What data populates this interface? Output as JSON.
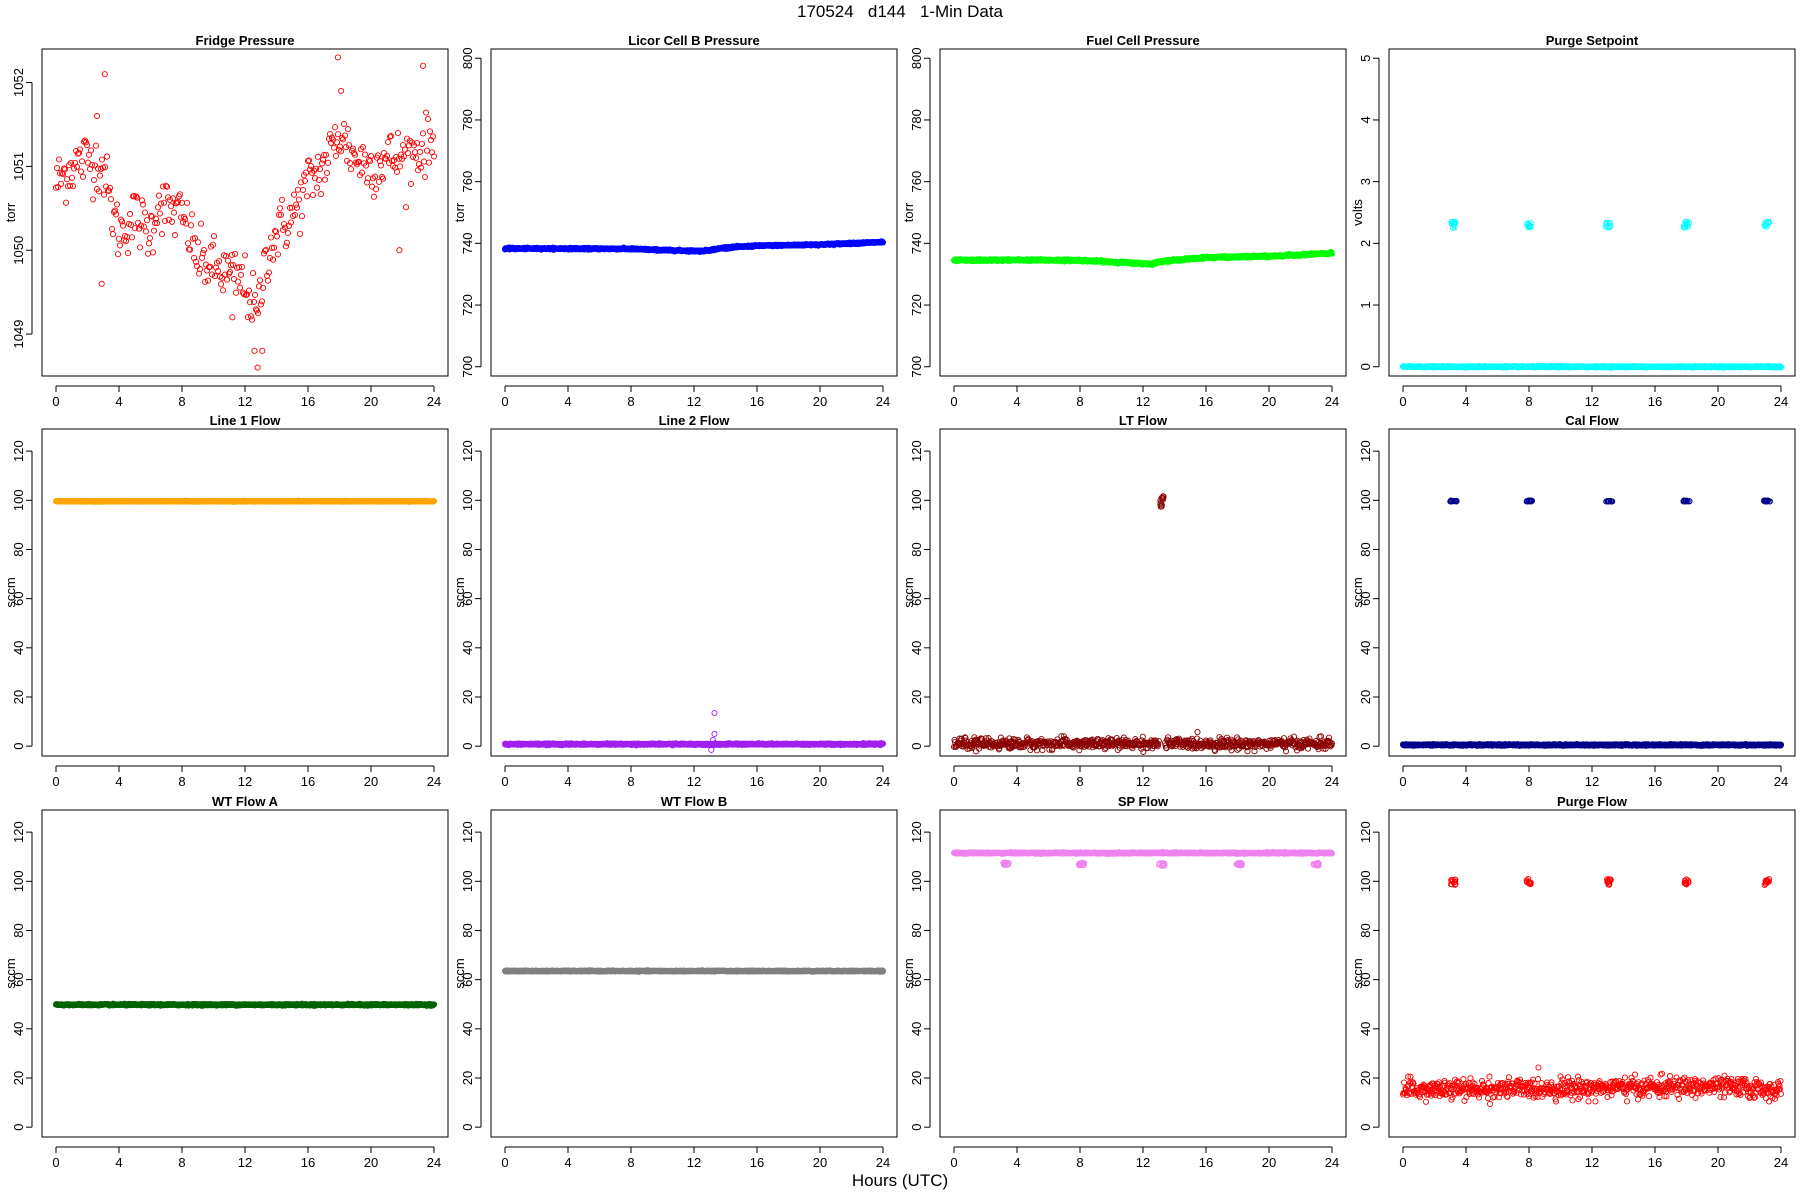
{
  "figure": {
    "title": "170524   d144   1-Min Data",
    "xlabel": "Hours (UTC)"
  },
  "chart_data": [
    {
      "type": "scatter",
      "title": "Fridge Pressure",
      "ylabel": "torr",
      "color": "#ff0000",
      "xlim": [
        0,
        24
      ],
      "ylim": [
        1048.5,
        1052.4
      ],
      "xticks": [
        0,
        4,
        8,
        12,
        16,
        20,
        24
      ],
      "yticks": [
        1049,
        1050,
        1051,
        1052
      ],
      "series": [
        {
          "kind": "curve",
          "points": [
            [
              0,
              1050.8
            ],
            [
              1,
              1051.0
            ],
            [
              2,
              1051.1
            ],
            [
              3,
              1051.0
            ],
            [
              3.5,
              1050.5
            ],
            [
              4,
              1050.2
            ],
            [
              5,
              1050.4
            ],
            [
              6,
              1050.2
            ],
            [
              6.5,
              1050.6
            ],
            [
              7,
              1050.5
            ],
            [
              8,
              1050.4
            ],
            [
              8.5,
              1050.2
            ],
            [
              9,
              1049.9
            ],
            [
              10,
              1049.8
            ],
            [
              11,
              1049.7
            ],
            [
              12,
              1049.6
            ],
            [
              12.8,
              1049.2
            ],
            [
              13.3,
              1049.9
            ],
            [
              14,
              1050.2
            ],
            [
              15,
              1050.4
            ],
            [
              16,
              1050.8
            ],
            [
              17,
              1051.0
            ],
            [
              18,
              1051.4
            ],
            [
              19,
              1051.1
            ],
            [
              20,
              1051.0
            ],
            [
              21,
              1051.1
            ],
            [
              22,
              1051.1
            ],
            [
              23,
              1051.2
            ],
            [
              24,
              1051.3
            ]
          ],
          "noise": 0.35,
          "spikes_up": [
            [
              3.1,
              1052.1
            ],
            [
              17.9,
              1052.3
            ],
            [
              18.1,
              1051.9
            ],
            [
              23.3,
              1052.2
            ],
            [
              2.6,
              1051.6
            ]
          ],
          "spikes_down": [
            [
              12.8,
              1048.6
            ],
            [
              12.6,
              1048.8
            ],
            [
              13.1,
              1048.8
            ],
            [
              2.9,
              1049.6
            ],
            [
              11.2,
              1049.2
            ],
            [
              21.8,
              1050.0
            ]
          ],
          "density": 1
        }
      ]
    },
    {
      "type": "scatter",
      "title": "Licor Cell B Pressure",
      "ylabel": "torr",
      "color": "#0000ff",
      "xlim": [
        0,
        24
      ],
      "ylim": [
        697,
        803
      ],
      "xticks": [
        0,
        4,
        8,
        12,
        16,
        20,
        24
      ],
      "yticks": [
        700,
        720,
        740,
        760,
        780,
        800
      ],
      "series": [
        {
          "kind": "curve",
          "points": [
            [
              0,
              738.3
            ],
            [
              4,
              738.3
            ],
            [
              8,
              738.2
            ],
            [
              10,
              737.8
            ],
            [
              12.5,
              737.5
            ],
            [
              13,
              737.8
            ],
            [
              14,
              738.6
            ],
            [
              16,
              739.2
            ],
            [
              20,
              739.6
            ],
            [
              24,
              740.4
            ]
          ],
          "noise": 0.25,
          "density": 3
        }
      ]
    },
    {
      "type": "scatter",
      "title": "Fuel Cell Pressure",
      "ylabel": "torr",
      "color": "#00ff00",
      "xlim": [
        0,
        24
      ],
      "ylim": [
        697,
        803
      ],
      "xticks": [
        0,
        4,
        8,
        12,
        16,
        20,
        24
      ],
      "yticks": [
        700,
        720,
        740,
        760,
        780,
        800
      ],
      "series": [
        {
          "kind": "curve",
          "points": [
            [
              0,
              734.5
            ],
            [
              4,
              734.6
            ],
            [
              8,
              734.5
            ],
            [
              10,
              734.0
            ],
            [
              12.5,
              733.3
            ],
            [
              13.2,
              734.2
            ],
            [
              16,
              735.4
            ],
            [
              20,
              735.8
            ],
            [
              24,
              736.8
            ]
          ],
          "noise": 0.3,
          "density": 3
        }
      ]
    },
    {
      "type": "scatter",
      "title": "Purge Setpoint",
      "ylabel": "volts",
      "color": "#00ffff",
      "xlim": [
        0,
        24
      ],
      "ylim": [
        -0.15,
        5.15
      ],
      "xticks": [
        0,
        4,
        8,
        12,
        16,
        20,
        24
      ],
      "yticks": [
        0,
        1,
        2,
        3,
        4,
        5
      ],
      "series": [
        {
          "kind": "curve",
          "points": [
            [
              0,
              0
            ],
            [
              24,
              0
            ]
          ],
          "noise": 0.01,
          "density": 3
        },
        {
          "kind": "clusters",
          "centers": [
            [
              3.2,
              2.3
            ],
            [
              8.0,
              2.28
            ],
            [
              13.0,
              2.3
            ],
            [
              18.0,
              2.3
            ],
            [
              23.1,
              2.3
            ]
          ],
          "spread": [
            0.35,
            0.05
          ],
          "count": 10
        }
      ]
    },
    {
      "type": "scatter",
      "title": "Line 1 Flow",
      "ylabel": "sccm",
      "color": "#ffa500",
      "xlim": [
        0,
        24
      ],
      "ylim": [
        -4,
        129
      ],
      "xticks": [
        0,
        4,
        8,
        12,
        16,
        20,
        24
      ],
      "yticks": [
        0,
        20,
        40,
        60,
        80,
        100,
        120
      ],
      "series": [
        {
          "kind": "curve",
          "points": [
            [
              0,
              99.6
            ],
            [
              24,
              99.6
            ]
          ],
          "noise": 0.15,
          "density": 3
        }
      ]
    },
    {
      "type": "scatter",
      "title": "Line 2 Flow",
      "ylabel": "sccm",
      "color": "#a020f0",
      "xlim": [
        0,
        24
      ],
      "ylim": [
        -4,
        129
      ],
      "xticks": [
        0,
        4,
        8,
        12,
        16,
        20,
        24
      ],
      "yticks": [
        0,
        20,
        40,
        60,
        80,
        100,
        120
      ],
      "series": [
        {
          "kind": "curve",
          "points": [
            [
              0,
              0.8
            ],
            [
              24,
              0.8
            ]
          ],
          "noise": 0.3,
          "density": 3
        },
        {
          "kind": "points",
          "points": [
            [
              13.3,
              13.5
            ],
            [
              13.3,
              5.0
            ],
            [
              13.2,
              2.5
            ],
            [
              13.1,
              -1.5
            ],
            [
              13.3,
              0.5
            ]
          ]
        }
      ]
    },
    {
      "type": "scatter",
      "title": "LT Flow",
      "ylabel": "sccm",
      "color": "#8b0000",
      "xlim": [
        0,
        24
      ],
      "ylim": [
        -4,
        129
      ],
      "xticks": [
        0,
        4,
        8,
        12,
        16,
        20,
        24
      ],
      "yticks": [
        0,
        20,
        40,
        60,
        80,
        100,
        120
      ],
      "series": [
        {
          "kind": "curve",
          "points": [
            [
              0,
              1.0
            ],
            [
              13.0,
              1.0
            ]
          ],
          "noise": 2.2,
          "density": 2
        },
        {
          "kind": "curve",
          "points": [
            [
              13.4,
              1.0
            ],
            [
              24,
              1.0
            ]
          ],
          "noise": 2.2,
          "density": 2
        },
        {
          "kind": "clusters",
          "centers": [
            [
              13.2,
              99.5
            ]
          ],
          "spread": [
            0.2,
            2.2
          ],
          "count": 12
        }
      ]
    },
    {
      "type": "scatter",
      "title": "Cal Flow",
      "ylabel": "sccm",
      "color": "#00008b",
      "xlim": [
        0,
        24
      ],
      "ylim": [
        -4,
        129
      ],
      "xticks": [
        0,
        4,
        8,
        12,
        16,
        20,
        24
      ],
      "yticks": [
        0,
        20,
        40,
        60,
        80,
        100,
        120
      ],
      "series": [
        {
          "kind": "curve",
          "points": [
            [
              0,
              0.5
            ],
            [
              24,
              0.5
            ]
          ],
          "noise": 0.3,
          "density": 3
        },
        {
          "kind": "clusters",
          "centers": [
            [
              3.2,
              99.7
            ],
            [
              8.0,
              99.7
            ],
            [
              13.1,
              99.7
            ],
            [
              18.0,
              99.7
            ],
            [
              23.1,
              99.7
            ]
          ],
          "spread": [
            0.4,
            0.2
          ],
          "count": 14
        }
      ]
    },
    {
      "type": "scatter",
      "title": "WT Flow A",
      "ylabel": "sccm",
      "color": "#006400",
      "xlim": [
        0,
        24
      ],
      "ylim": [
        -4,
        129
      ],
      "xticks": [
        0,
        4,
        8,
        12,
        16,
        20,
        24
      ],
      "yticks": [
        0,
        20,
        40,
        60,
        80,
        100,
        120
      ],
      "series": [
        {
          "kind": "curve",
          "points": [
            [
              0,
              49.8
            ],
            [
              24,
              49.8
            ]
          ],
          "noise": 0.3,
          "density": 3
        }
      ]
    },
    {
      "type": "scatter",
      "title": "WT Flow B",
      "ylabel": "sccm",
      "color": "#808080",
      "xlim": [
        0,
        24
      ],
      "ylim": [
        -4,
        129
      ],
      "xticks": [
        0,
        4,
        8,
        12,
        16,
        20,
        24
      ],
      "yticks": [
        0,
        20,
        40,
        60,
        80,
        100,
        120
      ],
      "series": [
        {
          "kind": "curve",
          "points": [
            [
              0,
              63.5
            ],
            [
              24,
              63.5
            ]
          ],
          "noise": 0.2,
          "density": 3
        }
      ]
    },
    {
      "type": "scatter",
      "title": "SP Flow",
      "ylabel": "sccm",
      "color": "#ee82ee",
      "xlim": [
        0,
        24
      ],
      "ylim": [
        -4,
        129
      ],
      "xticks": [
        0,
        4,
        8,
        12,
        16,
        20,
        24
      ],
      "yticks": [
        0,
        20,
        40,
        60,
        80,
        100,
        120
      ],
      "series": [
        {
          "kind": "curve",
          "points": [
            [
              0,
              111.5
            ],
            [
              24,
              111.5
            ]
          ],
          "noise": 0.25,
          "density": 3
        },
        {
          "kind": "clusters",
          "centers": [
            [
              3.3,
              107.0
            ],
            [
              8.1,
              107.0
            ],
            [
              13.2,
              106.8
            ],
            [
              18.1,
              107.0
            ],
            [
              23.0,
              107.0
            ]
          ],
          "spread": [
            0.35,
            0.6
          ],
          "count": 14
        }
      ]
    },
    {
      "type": "scatter",
      "title": "Purge Flow",
      "ylabel": "sccm",
      "color": "#ff0000",
      "xlim": [
        0,
        24
      ],
      "ylim": [
        -4,
        129
      ],
      "xticks": [
        0,
        4,
        8,
        12,
        16,
        20,
        24
      ],
      "yticks": [
        0,
        20,
        40,
        60,
        80,
        100,
        120
      ],
      "series": [
        {
          "kind": "curve",
          "points": [
            [
              0,
              15
            ],
            [
              12,
              16
            ],
            [
              20,
              16.5
            ],
            [
              24,
              15
            ]
          ],
          "noise": 4.0,
          "density": 2
        },
        {
          "kind": "clusters",
          "centers": [
            [
              3.2,
              99.7
            ],
            [
              8.0,
              99.7
            ],
            [
              13.1,
              99.7
            ],
            [
              18.0,
              99.7
            ],
            [
              23.1,
              99.7
            ]
          ],
          "spread": [
            0.3,
            1.2
          ],
          "count": 12
        }
      ]
    }
  ]
}
